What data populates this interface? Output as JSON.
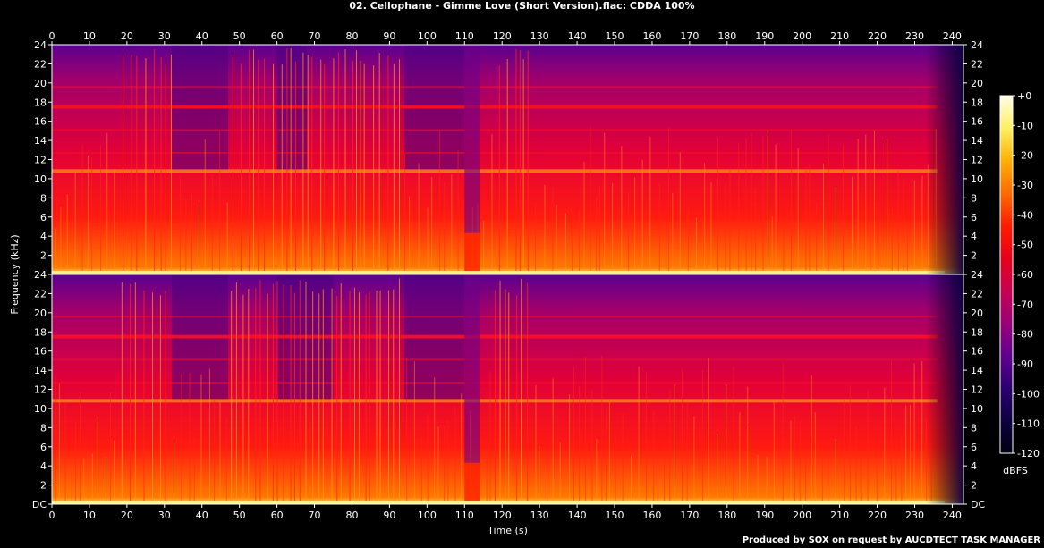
{
  "title": "02. Cellophane - Gimme Love (Short Version).flac: CDDA 100%",
  "credit": "Produced by SOX on request by AUCDTECT TASK MANAGER",
  "chart_data": {
    "type": "heatmap",
    "channels": 2,
    "xlabel": "Time (s)",
    "ylabel": "Frequency (kHz)",
    "xlim": [
      0,
      243
    ],
    "ylim": [
      0,
      24
    ],
    "x_ticks": [
      0,
      10,
      20,
      30,
      40,
      50,
      60,
      70,
      80,
      90,
      100,
      110,
      120,
      130,
      140,
      150,
      160,
      170,
      180,
      190,
      200,
      210,
      220,
      230,
      240
    ],
    "y_ticks": [
      "DC",
      "2",
      "4",
      "6",
      "8",
      "10",
      "12",
      "14",
      "16",
      "18",
      "20",
      "22",
      "24"
    ],
    "colorbar": {
      "label": "dBFS",
      "range": [
        -120,
        0
      ],
      "ticks": [
        "+0",
        "-10",
        "-20",
        "-30",
        "-40",
        "-50",
        "-60",
        "-70",
        "-80",
        "-90",
        "-100",
        "-110",
        "-120"
      ],
      "colors": [
        "#fffde8",
        "#fff060",
        "#ffb000",
        "#ff6a00",
        "#ff1c00",
        "#e8001a",
        "#c80050",
        "#9a0078",
        "#600090",
        "#2c0070",
        "#0e0040",
        "#000010"
      ]
    },
    "audio_end_s": 238,
    "notable_events": [
      {
        "start": 0,
        "end": 17,
        "level": "loud"
      },
      {
        "start": 17,
        "end": 32,
        "level": "loud-transients"
      },
      {
        "start": 47,
        "end": 94,
        "level": "loud-transients"
      },
      {
        "start": 110,
        "end": 114,
        "level": "low-band-only"
      },
      {
        "start": 118,
        "end": 128,
        "level": "sweep"
      },
      {
        "start": 128,
        "end": 236,
        "level": "loud"
      },
      {
        "start": 236,
        "end": 243,
        "level": "fade-out"
      }
    ]
  }
}
